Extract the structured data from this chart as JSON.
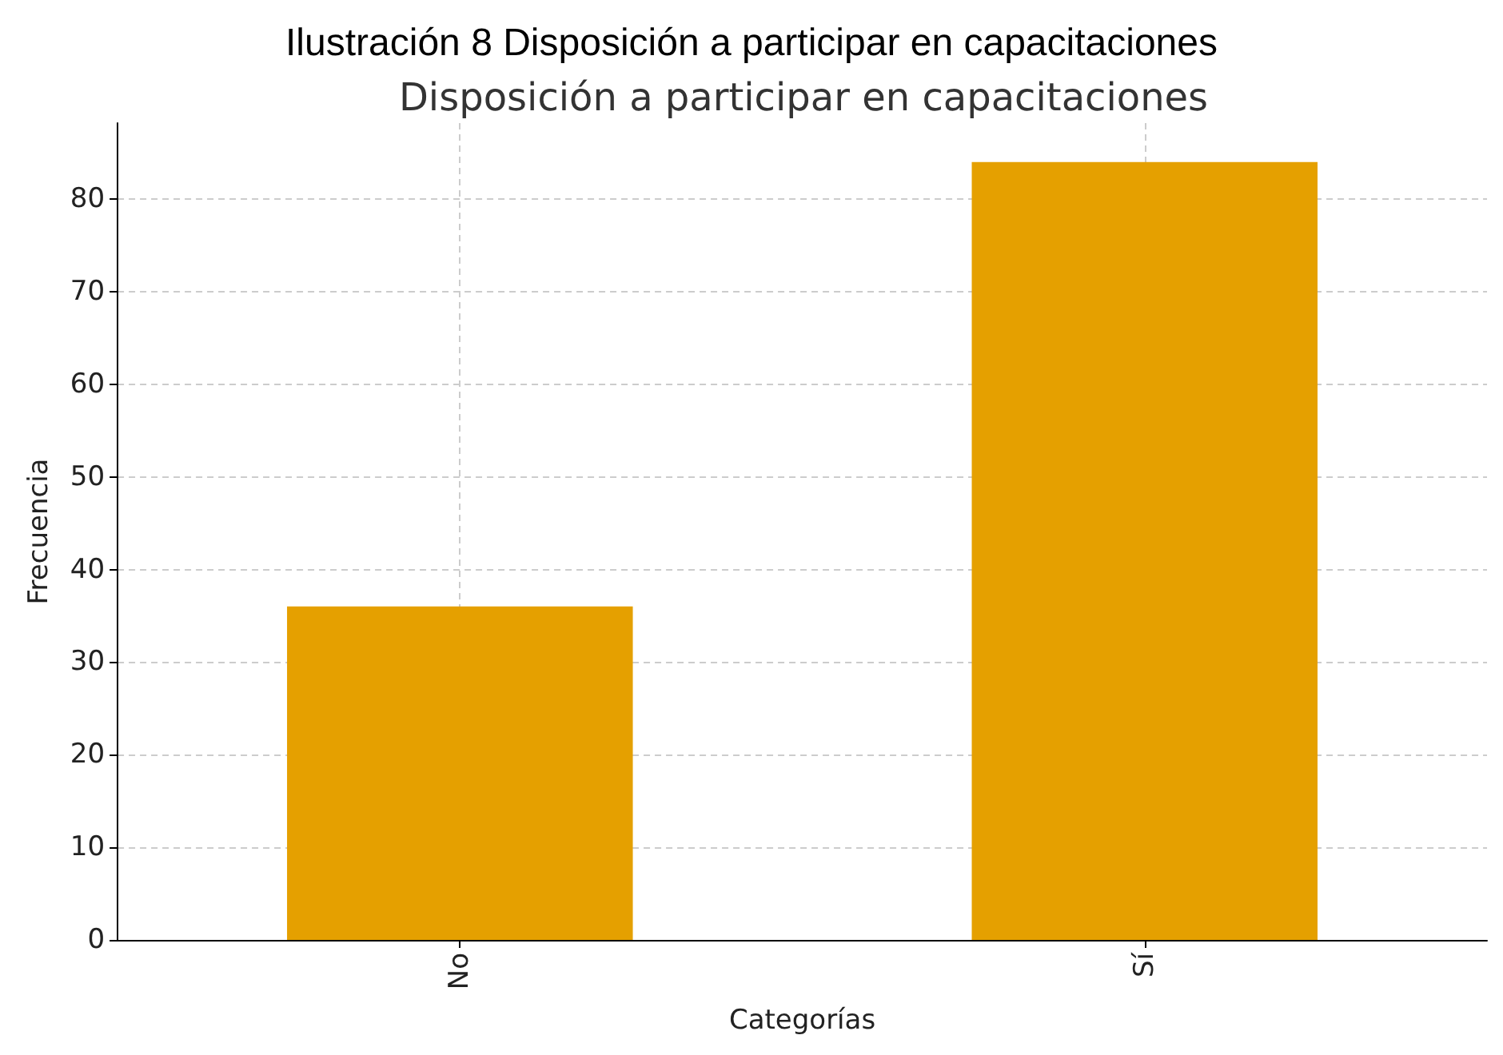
{
  "chart_data": {
    "type": "bar",
    "title": "Ilustración 8 Disposición a participar en capacitaciones",
    "subtitle": "Disposición a participar en capacitaciones",
    "xlabel": "Categorías",
    "ylabel": "Frecuencia",
    "categories": [
      "No",
      "Sí"
    ],
    "values": [
      36,
      84
    ],
    "color": "#e5a000",
    "ylim": [
      0,
      88.2
    ],
    "yticks": [
      0,
      10,
      20,
      30,
      40,
      50,
      60,
      70,
      80
    ],
    "grid": true
  }
}
